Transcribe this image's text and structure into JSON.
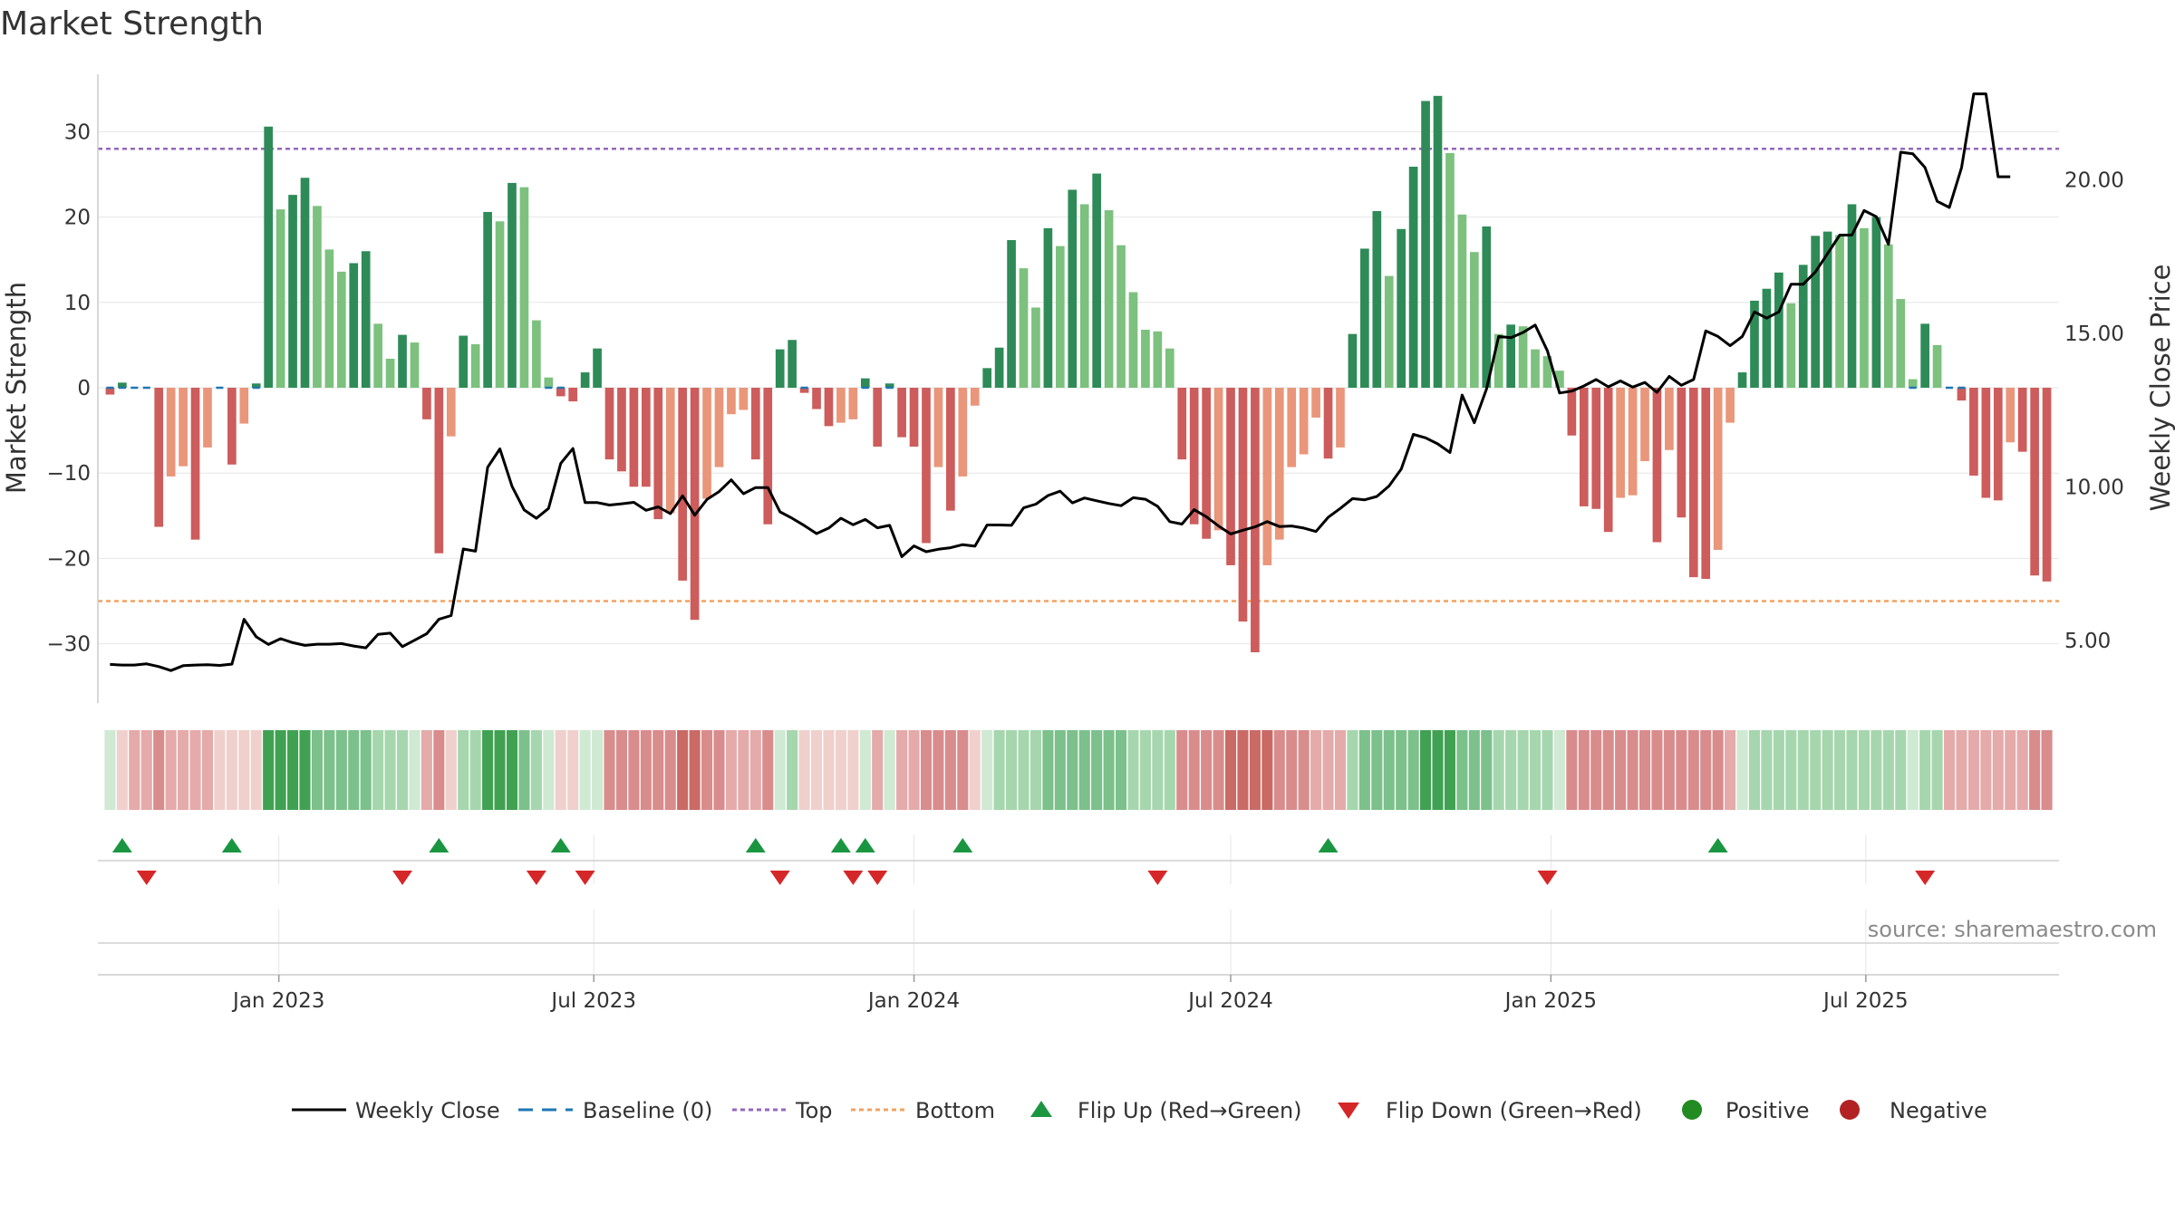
{
  "title": "Market Strength",
  "source": "source: sharemaestro.com",
  "colors": {
    "green_strong": "#2e8b57",
    "green_light": "#7cc17e",
    "red_strong": "#cd5c5c",
    "red_light": "#e9967a",
    "close_line": "#000000",
    "baseline": "#1f77b4",
    "top_line": "#9467bd",
    "bottom_line": "#f4a261",
    "flip_up": "#1a9641",
    "flip_down": "#d62728",
    "positive": "#228b22",
    "negative": "#b22222"
  },
  "chart_data": {
    "type": "bar",
    "title": "Market Strength",
    "ylabel": "Market Strength",
    "y2label": "Weekly Close Price",
    "ylim": [
      -36.5,
      36.5
    ],
    "y2lim": [
      3.1,
      23.8
    ],
    "yticks": [
      "30",
      "20",
      "10",
      "0",
      "−10",
      "−20",
      "−30"
    ],
    "yticks_values": [
      30,
      20,
      10,
      0,
      -10,
      -20,
      -30
    ],
    "y2ticks": [
      "20.00",
      "15.00",
      "10.00",
      "5.00"
    ],
    "y2ticks_values": [
      20,
      15,
      10,
      5
    ],
    "x_start": "2022-09-26",
    "x_end": "2025-09-22",
    "x_step_days": 7,
    "xticks": [
      "Jan 2023",
      "Jul 2023",
      "Jan 2024",
      "Jul 2024",
      "Jan 2025",
      "Jul 2025"
    ],
    "xticks_dates": [
      "2023-01-01",
      "2023-07-01",
      "2024-01-01",
      "2024-07-01",
      "2025-01-01",
      "2025-07-01"
    ],
    "top_threshold": 28,
    "bottom_threshold": -25,
    "strength": [
      -0.8,
      0.6,
      0,
      0,
      -16.3,
      -10.4,
      -9.2,
      -17.8,
      -7,
      0,
      -9,
      -4.2,
      0.5,
      30.6,
      20.9,
      22.6,
      24.6,
      21.3,
      16.2,
      13.6,
      14.6,
      16,
      7.5,
      3.4,
      6.2,
      5.3,
      -3.7,
      -19.4,
      -5.7,
      6.1,
      5.1,
      20.6,
      19.5,
      24,
      23.5,
      7.9,
      1.2,
      -1,
      -1.6,
      1.8,
      4.6,
      -8.4,
      -9.8,
      -11.6,
      -11.6,
      -15.4,
      -14.7,
      -22.6,
      -27.2,
      -13,
      -9.3,
      -3.1,
      -2.6,
      -8.4,
      -16,
      4.5,
      5.6,
      -0.6,
      -2.5,
      -4.5,
      -4.1,
      -3.7,
      1.1,
      -6.9,
      0.5,
      -5.8,
      -6.9,
      -18.2,
      -9.3,
      -14.4,
      -10.4,
      -2.1,
      2.3,
      4.7,
      17.3,
      14,
      9.4,
      18.7,
      16.6,
      23.2,
      21.5,
      25.1,
      20.8,
      16.7,
      11.2,
      6.8,
      6.6,
      4.6,
      -8.4,
      -16,
      -17.7,
      -16.7,
      -20.8,
      -27.4,
      -31,
      -20.8,
      -17.8,
      -9.3,
      -7.8,
      -3.5,
      -8.3,
      -7,
      6.3,
      16.3,
      20.7,
      13.1,
      18.6,
      25.9,
      33.6,
      34.2,
      27.5,
      20.3,
      15.9,
      18.9,
      6.3,
      7.4,
      7.2,
      4.5,
      3.7,
      2,
      -5.6,
      -13.9,
      -14.2,
      -16.9,
      -12.9,
      -12.6,
      -8.6,
      -18.1,
      -7.3,
      -15.2,
      -22.2,
      -22.4,
      -19,
      -4.1,
      1.8,
      10.2,
      11.6,
      13.5,
      9.9,
      14.4,
      17.8,
      18.3,
      17.9,
      21.5,
      18.7,
      20,
      16.8,
      10.4,
      1,
      7.5,
      5,
      0,
      -1.5,
      -10.3,
      -12.9,
      -13.2,
      -6.4,
      -7.5,
      -22,
      -22.7
    ],
    "close": [
      4.22,
      4.2,
      4.2,
      4.24,
      4.15,
      4.02,
      4.18,
      4.2,
      4.21,
      4.19,
      4.23,
      5.69,
      5.12,
      4.87,
      5.06,
      4.93,
      4.84,
      4.88,
      4.88,
      4.9,
      4.82,
      4.76,
      5.2,
      5.24,
      4.8,
      5.01,
      5.22,
      5.69,
      5.81,
      7.98,
      7.91,
      10.64,
      11.24,
      10.02,
      9.25,
      8.98,
      9.3,
      10.77,
      11.25,
      9.49,
      9.49,
      9.41,
      9.45,
      9.5,
      9.24,
      9.35,
      9.13,
      9.71,
      9.08,
      9.59,
      9.85,
      10.23,
      9.78,
      9.98,
      9.98,
      9.19,
      8.98,
      8.74,
      8.48,
      8.66,
      8.98,
      8.77,
      8.94,
      8.67,
      8.75,
      7.73,
      8.08,
      7.89,
      7.97,
      8.02,
      8.12,
      8.07,
      8.76,
      8.76,
      8.75,
      9.32,
      9.44,
      9.72,
      9.86,
      9.48,
      9.64,
      9.55,
      9.46,
      9.39,
      9.65,
      9.6,
      9.37,
      8.87,
      8.79,
      9.26,
      9.03,
      8.73,
      8.47,
      8.59,
      8.7,
      8.87,
      8.71,
      8.73,
      8.66,
      8.55,
      9.01,
      9.3,
      9.62,
      9.58,
      9.69,
      10.03,
      10.58,
      11.71,
      11.6,
      11.4,
      11.12,
      12.99,
      12.09,
      13.19,
      14.9,
      14.86,
      15.03,
      15.27,
      14.43,
      13.06,
      13.12,
      13.29,
      13.5,
      13.26,
      13.45,
      13.25,
      13.4,
      13.08,
      13.6,
      13.31,
      13.5,
      15.08,
      14.9,
      14.6,
      14.9,
      15.7,
      15.5,
      15.7,
      16.6,
      16.6,
      17.0,
      17.6,
      18.2,
      18.2,
      19.0,
      18.8,
      17.9,
      20.9,
      20.85,
      20.4,
      19.3,
      19.1,
      20.4,
      22.8,
      22.8,
      20.1,
      20.1
    ],
    "heat": [
      1,
      -1,
      -2,
      -2,
      -3,
      -2,
      -2,
      -2,
      -2,
      -1,
      -1,
      -1,
      -1,
      4,
      4,
      4,
      4,
      3,
      3,
      3,
      3,
      3,
      2,
      2,
      2,
      1,
      -2,
      -3,
      -1,
      2,
      2,
      4,
      4,
      4,
      3,
      2,
      1,
      -1,
      -1,
      1,
      1,
      -3,
      -3,
      -3,
      -3,
      -3,
      -3,
      -4,
      -4,
      -3,
      -3,
      -2,
      -2,
      -2,
      -3,
      1,
      2,
      -1,
      -1,
      -1,
      -1,
      -1,
      1,
      -2,
      1,
      -2,
      -2,
      -3,
      -3,
      -3,
      -3,
      -1,
      1,
      2,
      2,
      2,
      2,
      3,
      3,
      3,
      3,
      3,
      3,
      3,
      2,
      2,
      2,
      2,
      -3,
      -3,
      -3,
      -3,
      -4,
      -4,
      -4,
      -4,
      -3,
      -3,
      -3,
      -2,
      -2,
      -2,
      2,
      3,
      3,
      3,
      3,
      3,
      4,
      4,
      4,
      3,
      3,
      3,
      2,
      2,
      2,
      2,
      2,
      1,
      -3,
      -3,
      -3,
      -3,
      -3,
      -3,
      -3,
      -3,
      -3,
      -3,
      -3,
      -3,
      -3,
      -2,
      1,
      2,
      2,
      2,
      2,
      2,
      2,
      2,
      2,
      2,
      2,
      2,
      2,
      2,
      1,
      2,
      2,
      -2,
      -2,
      -2,
      -2,
      -2,
      -2,
      -2,
      -3,
      -3
    ],
    "flip_up_weeks": [
      1,
      10,
      27,
      37,
      53,
      60,
      62,
      70,
      100,
      132
    ],
    "flip_down_weeks": [
      3,
      24,
      35,
      39,
      55,
      61,
      63,
      86,
      118,
      149
    ],
    "series": [
      {
        "name": "Weekly Close",
        "style": "line"
      },
      {
        "name": "Baseline (0)",
        "style": "dash"
      },
      {
        "name": "Top",
        "style": "dotted"
      },
      {
        "name": "Bottom",
        "style": "dotted"
      },
      {
        "name": "Flip Up (Red→Green)",
        "style": "triangle-up"
      },
      {
        "name": "Flip Down (Green→Red)",
        "style": "triangle-down"
      },
      {
        "name": "Positive",
        "style": "circle"
      },
      {
        "name": "Negative",
        "style": "circle"
      }
    ]
  }
}
